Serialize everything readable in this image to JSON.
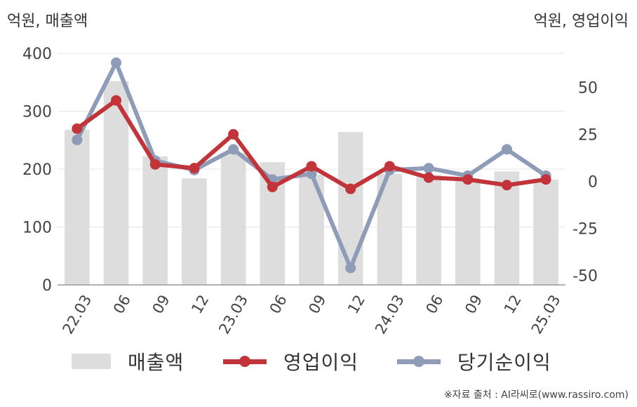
{
  "chart_data": {
    "type": "bar+line",
    "left_axis_label": "억원, 매출액",
    "right_axis_label": "억원, 영업이익",
    "categories": [
      "22.03",
      "06",
      "09",
      "12",
      "23.03",
      "06",
      "09",
      "12",
      "24.03",
      "06",
      "09",
      "12",
      "25.03"
    ],
    "left_axis": {
      "ylim": [
        0,
        400
      ],
      "ticks": [
        "0",
        "100",
        "200",
        "300",
        "400"
      ]
    },
    "right_axis": {
      "ylim": [
        -55,
        68
      ],
      "ticks": [
        "-50",
        "-25",
        "0",
        "25",
        "50"
      ]
    },
    "grid": true,
    "legend_position": "bottom",
    "series": [
      {
        "name": "매출액",
        "axis": "left",
        "kind": "bar",
        "color": "#dddddd",
        "values": [
          268,
          352,
          222,
          184,
          228,
          212,
          190,
          264,
          192,
          190,
          182,
          196,
          182
        ]
      },
      {
        "name": "영업이익",
        "axis": "right",
        "kind": "line",
        "color": "#c0343a",
        "values": [
          28,
          43,
          9,
          7,
          25,
          -3,
          8,
          -4,
          8,
          2,
          1,
          -2,
          1
        ]
      },
      {
        "name": "당기순이익",
        "axis": "right",
        "kind": "line",
        "color": "#8e9cb8",
        "values": [
          22,
          63,
          11,
          6,
          17,
          1,
          4,
          -46,
          6,
          7,
          3,
          17,
          3
        ]
      }
    ]
  },
  "source": "※자료 출처 : AI라씨로(www.rassiro.com)"
}
